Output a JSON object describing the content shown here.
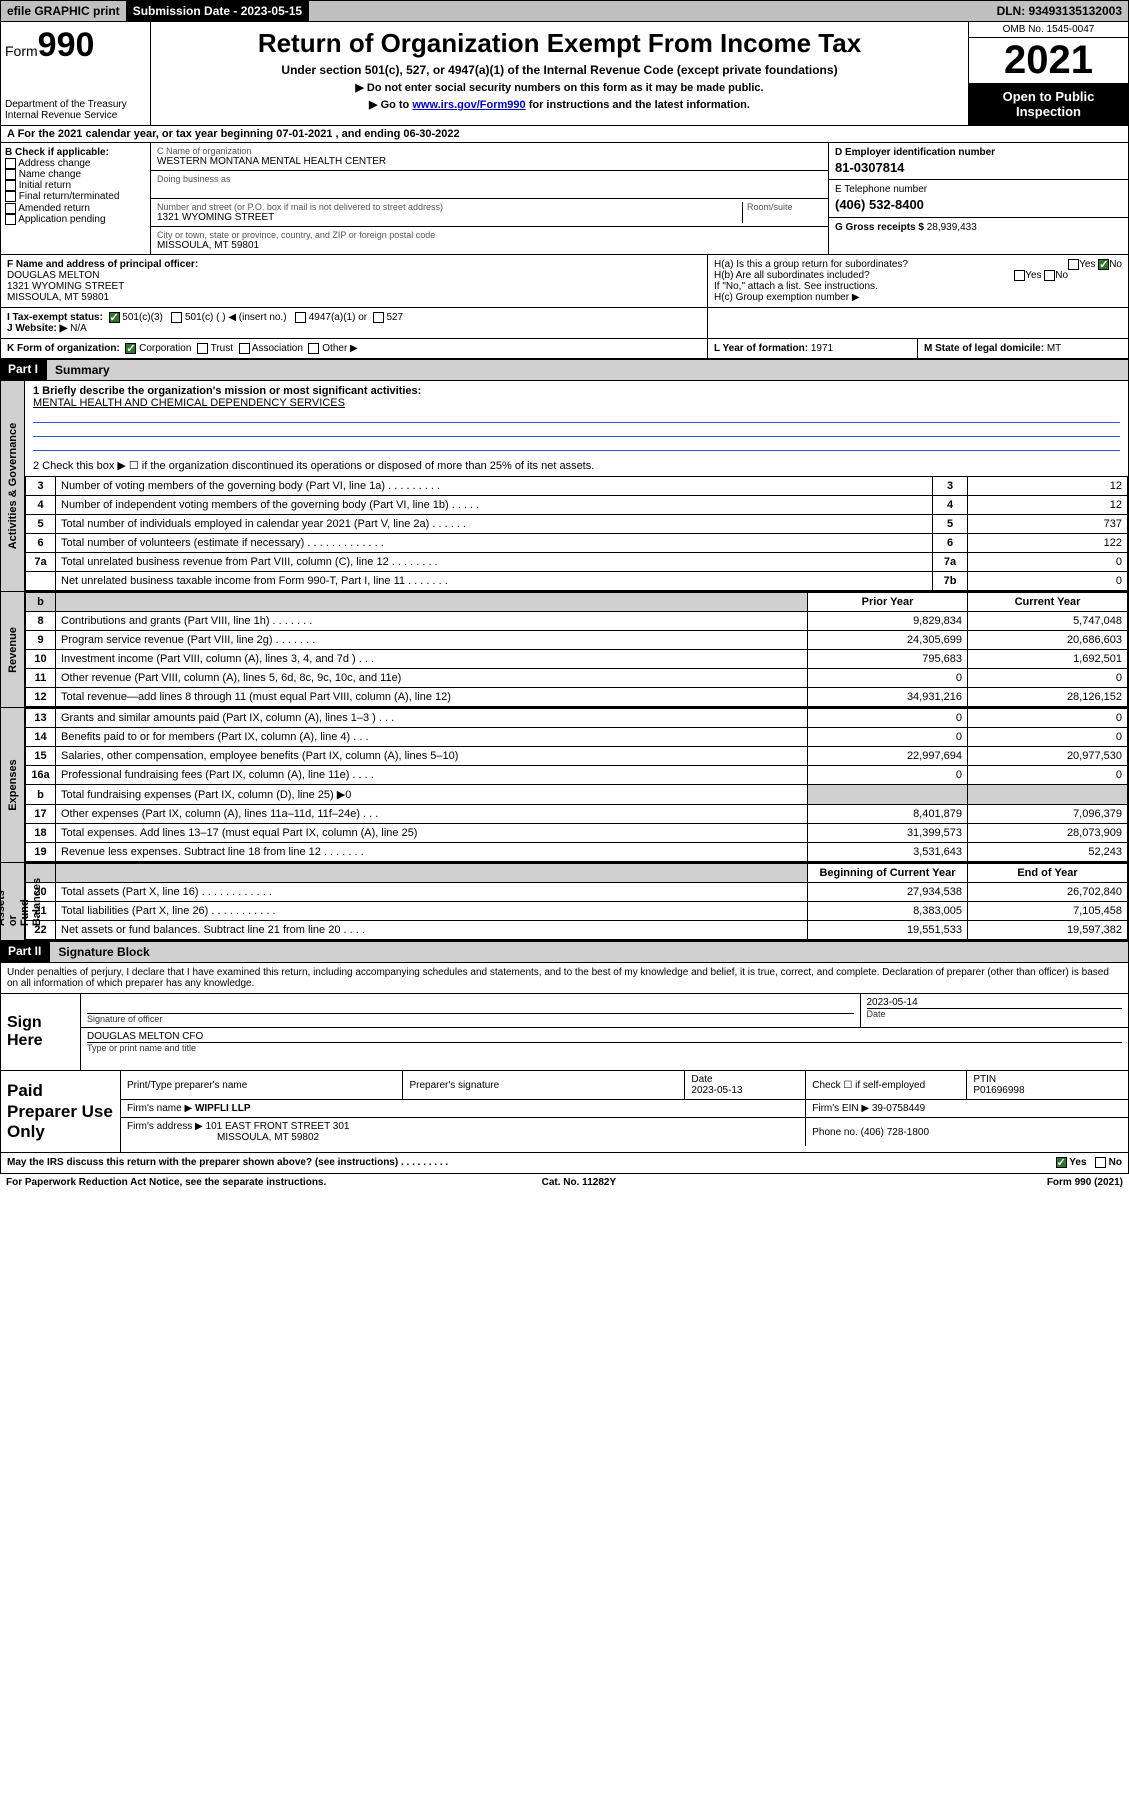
{
  "topbar": {
    "efile": "efile GRAPHIC print",
    "submission_label": "Submission Date - 2023-05-15",
    "dln": "DLN: 93493135132003"
  },
  "header": {
    "form_prefix": "Form",
    "form_number": "990",
    "title": "Return of Organization Exempt From Income Tax",
    "subtitle1": "Under section 501(c), 527, or 4947(a)(1) of the Internal Revenue Code (except private foundations)",
    "subtitle2": "▶ Do not enter social security numbers on this form as it may be made public.",
    "subtitle3_pre": "▶ Go to ",
    "subtitle3_link": "www.irs.gov/Form990",
    "subtitle3_post": " for instructions and the latest information.",
    "dept": "Department of the Treasury\nInternal Revenue Service",
    "omb": "OMB No. 1545-0047",
    "year": "2021",
    "open": "Open to Public Inspection"
  },
  "period": {
    "label_a": "A For the 2021 calendar year, or tax year beginning ",
    "begin": "07-01-2021",
    "mid": " , and ending ",
    "end": "06-30-2022"
  },
  "box_b": {
    "label": "B Check if applicable:",
    "opts": [
      "Address change",
      "Name change",
      "Initial return",
      "Final return/terminated",
      "Amended return",
      "Application pending"
    ]
  },
  "box_c": {
    "name_label": "C Name of organization",
    "name": "WESTERN MONTANA MENTAL HEALTH CENTER",
    "dba_label": "Doing business as",
    "addr_label": "Number and street (or P.O. box if mail is not delivered to street address)",
    "room_label": "Room/suite",
    "addr": "1321 WYOMING STREET",
    "city_label": "City or town, state or province, country, and ZIP or foreign postal code",
    "city": "MISSOULA, MT  59801"
  },
  "box_d": {
    "label": "D Employer identification number",
    "val": "81-0307814"
  },
  "box_e": {
    "label": "E Telephone number",
    "val": "(406) 532-8400"
  },
  "box_g": {
    "label": "G Gross receipts $",
    "val": "28,939,433"
  },
  "box_f": {
    "label": "F Name and address of principal officer:",
    "name": "DOUGLAS MELTON",
    "addr1": "1321 WYOMING STREET",
    "addr2": "MISSOULA, MT  59801"
  },
  "box_h": {
    "ha": "H(a)  Is this a group return for subordinates?",
    "hb": "H(b)  Are all subordinates included?",
    "hb_note": "If \"No,\" attach a list. See instructions.",
    "hc": "H(c)  Group exemption number ▶",
    "yes": "Yes",
    "no": "No"
  },
  "line_i": {
    "label": "I     Tax-exempt status:",
    "o1": "501(c)(3)",
    "o2": "501(c) (   ) ◀ (insert no.)",
    "o3": "4947(a)(1) or",
    "o4": "527"
  },
  "line_j": {
    "label": "J    Website: ▶",
    "val": "N/A"
  },
  "line_k": {
    "label": "K Form of organization:",
    "o1": "Corporation",
    "o2": "Trust",
    "o3": "Association",
    "o4": "Other ▶"
  },
  "line_l": {
    "label": "L Year of formation: ",
    "val": "1971"
  },
  "line_m": {
    "label": "M State of legal domicile: ",
    "val": "MT"
  },
  "part1": {
    "hdr": "Part I",
    "title": "Summary"
  },
  "summary": {
    "q1_label": "1   Briefly describe the organization's mission or most significant activities:",
    "q1_val": "MENTAL HEALTH AND CHEMICAL DEPENDENCY SERVICES",
    "q2": "2   Check this box ▶ ☐  if the organization discontinued its operations or disposed of more than 25% of its net assets.",
    "rows_gov": [
      {
        "n": "3",
        "d": "Number of voting members of the governing body (Part VI, line 1a)   .    .    .    .    .    .    .    .    .",
        "b": "3",
        "v": "12"
      },
      {
        "n": "4",
        "d": "Number of independent voting members of the governing body (Part VI, line 1b)   .    .    .    .    .",
        "b": "4",
        "v": "12"
      },
      {
        "n": "5",
        "d": "Total number of individuals employed in calendar year 2021 (Part V, line 2a)   .    .    .    .    .    .",
        "b": "5",
        "v": "737"
      },
      {
        "n": "6",
        "d": "Total number of volunteers (estimate if necessary)   .    .    .    .    .    .    .    .    .    .    .    .    .",
        "b": "6",
        "v": "122"
      },
      {
        "n": "7a",
        "d": "Total unrelated business revenue from Part VIII, column (C), line 12   .    .    .    .    .    .    .    .",
        "b": "7a",
        "v": "0"
      },
      {
        "n": "",
        "d": "Net unrelated business taxable income from Form 990-T, Part I, line 11   .    .    .    .    .    .    .",
        "b": "7b",
        "v": "0"
      }
    ],
    "col_prior": "Prior Year",
    "col_current": "Current Year",
    "rows_rev": [
      {
        "n": "8",
        "d": "Contributions and grants (Part VIII, line 1h)    .    .    .    .    .    .    .",
        "p": "9,829,834",
        "c": "5,747,048"
      },
      {
        "n": "9",
        "d": "Program service revenue (Part VIII, line 2g)    .    .    .    .    .    .    .",
        "p": "24,305,699",
        "c": "20,686,603"
      },
      {
        "n": "10",
        "d": "Investment income (Part VIII, column (A), lines 3, 4, and 7d )    .    .    .",
        "p": "795,683",
        "c": "1,692,501"
      },
      {
        "n": "11",
        "d": "Other revenue (Part VIII, column (A), lines 5, 6d, 8c, 9c, 10c, and 11e)",
        "p": "0",
        "c": "0"
      },
      {
        "n": "12",
        "d": "Total revenue—add lines 8 through 11 (must equal Part VIII, column (A), line 12)",
        "p": "34,931,216",
        "c": "28,126,152"
      }
    ],
    "rows_exp": [
      {
        "n": "13",
        "d": "Grants and similar amounts paid (Part IX, column (A), lines 1–3 )    .    .    .",
        "p": "0",
        "c": "0"
      },
      {
        "n": "14",
        "d": "Benefits paid to or for members (Part IX, column (A), line 4)    .    .    .",
        "p": "0",
        "c": "0"
      },
      {
        "n": "15",
        "d": "Salaries, other compensation, employee benefits (Part IX, column (A), lines 5–10)",
        "p": "22,997,694",
        "c": "20,977,530"
      },
      {
        "n": "16a",
        "d": "Professional fundraising fees (Part IX, column (A), line 11e)    .    .    .    .",
        "p": "0",
        "c": "0"
      },
      {
        "n": "b",
        "d": "Total fundraising expenses (Part IX, column (D), line 25) ▶0",
        "p": "",
        "c": "",
        "grey": true
      },
      {
        "n": "17",
        "d": "Other expenses (Part IX, column (A), lines 11a–11d, 11f–24e)    .    .    .",
        "p": "8,401,879",
        "c": "7,096,379"
      },
      {
        "n": "18",
        "d": "Total expenses. Add lines 13–17 (must equal Part IX, column (A), line 25)",
        "p": "31,399,573",
        "c": "28,073,909"
      },
      {
        "n": "19",
        "d": "Revenue less expenses. Subtract line 18 from line 12   .    .    .    .    .    .    .",
        "p": "3,531,643",
        "c": "52,243"
      }
    ],
    "col_boy": "Beginning of Current Year",
    "col_eoy": "End of Year",
    "rows_net": [
      {
        "n": "20",
        "d": "Total assets (Part X, line 16)   .    .    .    .    .    .    .    .    .    .    .    .",
        "p": "27,934,538",
        "c": "26,702,840"
      },
      {
        "n": "21",
        "d": "Total liabilities (Part X, line 26)   .    .    .    .    .    .    .    .    .    .    .",
        "p": "8,383,005",
        "c": "7,105,458"
      },
      {
        "n": "22",
        "d": "Net assets or fund balances. Subtract line 21 from line 20   .    .    .    .",
        "p": "19,551,533",
        "c": "19,597,382"
      }
    ],
    "vlabels": {
      "gov": "Activities & Governance",
      "rev": "Revenue",
      "exp": "Expenses",
      "net": "Net Assets or\nFund Balances"
    }
  },
  "part2": {
    "hdr": "Part II",
    "title": "Signature Block"
  },
  "sig": {
    "intro": "Under penalties of perjury, I declare that I have examined this return, including accompanying schedules and statements, and to the best of my knowledge and belief, it is true, correct, and complete. Declaration of preparer (other than officer) is based on all information of which preparer has any knowledge.",
    "sign_here": "Sign Here",
    "sig_officer": "Signature of officer",
    "date_label": "Date",
    "date": "2023-05-14",
    "name_title_lab": "Type or print name and title",
    "name_title": "DOUGLAS MELTON CFO"
  },
  "paid": {
    "label": "Paid Preparer Use Only",
    "h1": "Print/Type preparer's name",
    "h2": "Preparer's signature",
    "h3": "Date",
    "h3v": "2023-05-13",
    "h4": "Check ☐ if self-employed",
    "h5": "PTIN",
    "h5v": "P01696998",
    "firm_name_l": "Firm's name    ▶",
    "firm_name": "WIPFLI LLP",
    "firm_ein_l": "Firm's EIN ▶",
    "firm_ein": "39-0758449",
    "firm_addr_l": "Firm's address ▶",
    "firm_addr": "101 EAST FRONT STREET 301",
    "firm_city": "MISSOULA, MT  59802",
    "phone_l": "Phone no.",
    "phone": "(406) 728-1800"
  },
  "footer": {
    "discuss": "May the IRS discuss this return with the preparer shown above? (see instructions)    .    .    .    .    .    .    .    .    .",
    "yes": "Yes",
    "no": "No",
    "pra": "For Paperwork Reduction Act Notice, see the separate instructions.",
    "cat": "Cat. No. 11282Y",
    "form": "Form 990 (2021)"
  }
}
